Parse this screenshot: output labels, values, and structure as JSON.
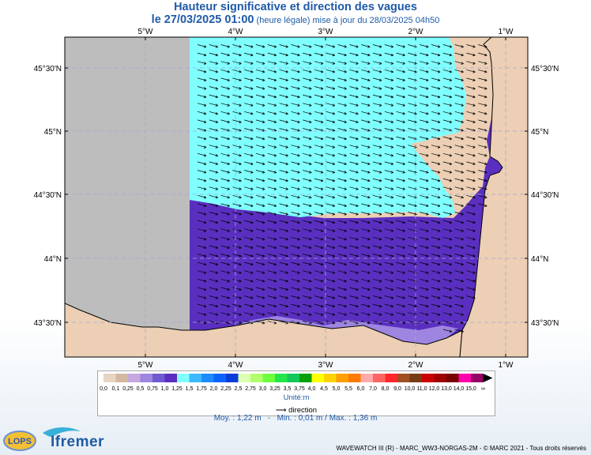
{
  "header": {
    "title": "Hauteur significative et direction des vagues",
    "date_label": "le 27/03/2025 01:00",
    "update_label": "(heure légale) mise à jour du 28/03/2025 04h50"
  },
  "map": {
    "longitude_labels": [
      "5°W",
      "4°W",
      "3°W",
      "2°W",
      "1°W"
    ],
    "latitude_labels": [
      "45°30'N",
      "45°N",
      "44°30'N",
      "44°N",
      "43°30'N"
    ],
    "colors": {
      "no_data": "#bdbdbd",
      "band_1_25_1_5": "#80ffff",
      "band_1_0_1_25": "#5a2fc0",
      "land": "#eccfb4",
      "frame": "#000000"
    }
  },
  "legend": {
    "values": [
      "0,0",
      "0,1",
      "0,25",
      "0,5",
      "0,75",
      "1,0",
      "1,25",
      "1,5",
      "1,75",
      "2,0",
      "2,25",
      "2,5",
      "2,75",
      "3,0",
      "3,25",
      "3,5",
      "3,75",
      "4,0",
      "4,5",
      "5,0",
      "5,5",
      "6,0",
      "7,0",
      "8,0",
      "9,0",
      "10,0",
      "11,0",
      "12,0",
      "13,0",
      "14,0",
      "15,0",
      "∞"
    ],
    "colors": [
      "#e6d5c3",
      "#d4b8a1",
      "#c6a7df",
      "#9e85e0",
      "#7059d1",
      "#5a2fc0",
      "#80ffff",
      "#3ab9ff",
      "#1e8cff",
      "#0a64ff",
      "#0a3cd8",
      "#dcffb2",
      "#b2ff6e",
      "#6eff3c",
      "#23e64b",
      "#14c85a",
      "#0aa00a",
      "#ffff00",
      "#ffd200",
      "#ffa000",
      "#ff7a00",
      "#ffaaaa",
      "#ff6464",
      "#ff2828",
      "#a0501e",
      "#783c14",
      "#cc0000",
      "#a00000",
      "#780000",
      "#ff00aa",
      "#960064"
    ],
    "unit_label": "Unité:m",
    "direction_label": "direction"
  },
  "stats": {
    "mean_label": "Moy. : 1,22 m",
    "minmax_label": "Min. : 0,01 m / Max. : 1,36 m"
  },
  "footer": {
    "credits": "WAVEWATCH III (R) - MARC_WW3-NORGAS-2M - © MARC 2021 - Tous droits réservés",
    "lops_logo": "LOPS",
    "ifremer_logo": "Ifremer"
  }
}
